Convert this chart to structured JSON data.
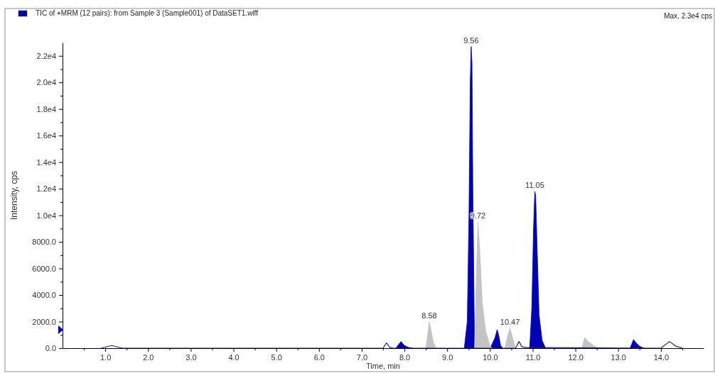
{
  "chart_data": {
    "type": "area",
    "xlabel": "Time, min",
    "ylabel": "Intensity, cps",
    "legend": "top left",
    "grid": false,
    "marker": "none",
    "xlim": [
      0,
      15
    ],
    "ylim": [
      0,
      23000
    ],
    "xticks": [
      {
        "value": 0.5,
        "label": null
      },
      {
        "value": 1,
        "label": "1.0"
      },
      {
        "value": 1.5,
        "label": null
      },
      {
        "value": 2,
        "label": "2.0"
      },
      {
        "value": 2.5,
        "label": null
      },
      {
        "value": 3,
        "label": "3.0"
      },
      {
        "value": 3.5,
        "label": null
      },
      {
        "value": 4,
        "label": "4.0"
      },
      {
        "value": 4.5,
        "label": null
      },
      {
        "value": 5,
        "label": "5.0"
      },
      {
        "value": 5.5,
        "label": null
      },
      {
        "value": 6,
        "label": "6.0"
      },
      {
        "value": 6.5,
        "label": null
      },
      {
        "value": 7,
        "label": "7.0"
      },
      {
        "value": 7.5,
        "label": null
      },
      {
        "value": 8,
        "label": "8.0"
      },
      {
        "value": 8.5,
        "label": null
      },
      {
        "value": 9,
        "label": "9.0"
      },
      {
        "value": 9.5,
        "label": null
      },
      {
        "value": 10,
        "label": "10.0"
      },
      {
        "value": 10.5,
        "label": null
      },
      {
        "value": 11,
        "label": "11.0"
      },
      {
        "value": 11.5,
        "label": null
      },
      {
        "value": 12,
        "label": "12.0"
      },
      {
        "value": 12.5,
        "label": null
      },
      {
        "value": 13,
        "label": "13.0"
      },
      {
        "value": 13.5,
        "label": null
      },
      {
        "value": 14,
        "label": "14.0"
      },
      {
        "value": 14.5,
        "label": null
      }
    ],
    "yticks": [
      {
        "value": 0,
        "label": "0.0"
      },
      {
        "value": 1000,
        "label": null
      },
      {
        "value": 2000,
        "label": "2000.0"
      },
      {
        "value": 3000,
        "label": null
      },
      {
        "value": 4000,
        "label": "4000.0"
      },
      {
        "value": 5000,
        "label": null
      },
      {
        "value": 6000,
        "label": "6000.0"
      },
      {
        "value": 7000,
        "label": null
      },
      {
        "value": 8000,
        "label": "8000.0"
      },
      {
        "value": 9000,
        "label": null
      },
      {
        "value": 10000,
        "label": "1.0e4"
      },
      {
        "value": 11000,
        "label": null
      },
      {
        "value": 12000,
        "label": "1.2e4"
      },
      {
        "value": 13000,
        "label": null
      },
      {
        "value": 14000,
        "label": "1.4e4"
      },
      {
        "value": 15000,
        "label": null
      },
      {
        "value": 16000,
        "label": "1.6e4"
      },
      {
        "value": 17000,
        "label": null
      },
      {
        "value": 18000,
        "label": "1.8e4"
      },
      {
        "value": 19000,
        "label": null
      },
      {
        "value": 20000,
        "label": "2.0e4"
      },
      {
        "value": 21000,
        "label": null
      },
      {
        "value": 22000,
        "label": "2.2e4"
      }
    ],
    "series": [
      {
        "name": "TIC of +MRM (12 pairs): from Sample 3 (Sample001) of DataSET1.wiff",
        "color": "#0000b4",
        "x": [
          7.8,
          7.88,
          7.92,
          8.0,
          8.1,
          8.2,
          8.3,
          9.4,
          9.47,
          9.51,
          9.54,
          9.56,
          9.58,
          9.6,
          9.63,
          9.64,
          9.7,
          10.0,
          10.05,
          10.12,
          10.17,
          10.21,
          10.25,
          10.3,
          10.5,
          10.93,
          10.98,
          11.02,
          11.05,
          11.07,
          11.1,
          11.15,
          11.22,
          11.3,
          11.4,
          13.28,
          13.36,
          13.42,
          13.5,
          13.6
        ],
        "values": [
          0,
          350,
          500,
          200,
          50,
          0,
          null,
          0,
          2000,
          10000,
          20000,
          22700,
          21500,
          12000,
          3000,
          0,
          null,
          0,
          300,
          800,
          1400,
          900,
          200,
          0,
          null,
          0,
          3000,
          9000,
          11800,
          11500,
          8000,
          2500,
          600,
          0,
          null,
          0,
          650,
          400,
          150,
          0
        ]
      },
      {
        "color": "#c4c4c4",
        "x": [
          8.5,
          8.55,
          8.58,
          8.62,
          8.68,
          8.75,
          9.0,
          9.64,
          9.68,
          9.72,
          9.76,
          9.82,
          9.9,
          10.0,
          10.05,
          10.2,
          10.35,
          10.42,
          10.47,
          10.52,
          10.6,
          11.0,
          12.15,
          12.22,
          12.3,
          12.45,
          12.55
        ],
        "values": [
          0,
          1200,
          2000,
          1400,
          400,
          0,
          null,
          0,
          5000,
          9500,
          7500,
          3500,
          1300,
          200,
          0,
          null,
          0,
          1000,
          1500,
          900,
          0,
          null,
          0,
          800,
          500,
          150,
          0
        ]
      },
      {
        "type": "line",
        "color": "#1c1c8f",
        "x": [
          0.9,
          1.15,
          1.4,
          7.5,
          7.58,
          7.66,
          7.75,
          10.6,
          10.68,
          10.75,
          10.85,
          14.0,
          14.2,
          14.35,
          14.5
        ],
        "values": [
          0,
          200,
          0,
          0,
          400,
          50,
          0,
          0,
          500,
          100,
          50,
          0,
          500,
          150,
          0
        ]
      }
    ],
    "annotations": [
      {
        "text": "9.56",
        "x": 9.56,
        "y": 22700
      },
      {
        "text": "9.72",
        "x": 9.72,
        "y": 9500
      },
      {
        "text": "11.05",
        "x": 11.05,
        "y": 11800
      },
      {
        "text": "8.58",
        "x": 8.58,
        "y": 2000
      },
      {
        "text": "10.47",
        "x": 10.47,
        "y": 1500
      },
      "Max. 2.3e4 cps"
    ]
  }
}
